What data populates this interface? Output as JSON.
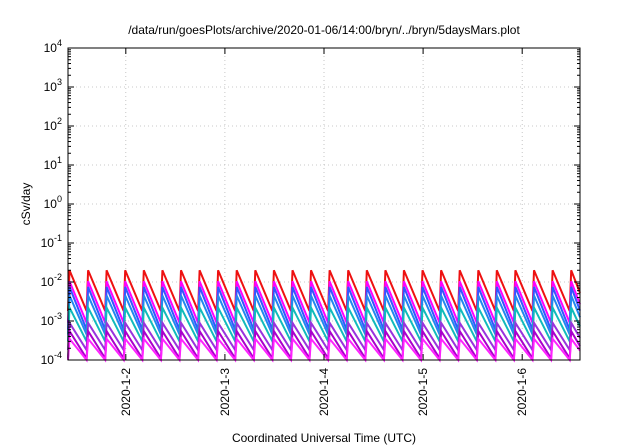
{
  "chart_data": {
    "type": "line",
    "title": "/data/run/goesPlots/archive/2020-01-06/14:00/bryn/../bryn/5daysMars.plot",
    "xlabel": "Coordinated Universal Time (UTC)",
    "ylabel": "cSv/day",
    "yscale": "log",
    "ylim": [
      0.0001,
      10000
    ],
    "xlim": [
      "2020-01-01T10:00",
      "2020-01-06T14:00"
    ],
    "y_ticks": [
      {
        "base": "10",
        "exp": "-4",
        "value": 0.0001
      },
      {
        "base": "10",
        "exp": "-3",
        "value": 0.001
      },
      {
        "base": "10",
        "exp": "-2",
        "value": 0.01
      },
      {
        "base": "10",
        "exp": "-1",
        "value": 0.1
      },
      {
        "base": "10",
        "exp": "0",
        "value": 1
      },
      {
        "base": "10",
        "exp": "1",
        "value": 10
      },
      {
        "base": "10",
        "exp": "2",
        "value": 100
      },
      {
        "base": "10",
        "exp": "3",
        "value": 1000
      },
      {
        "base": "10",
        "exp": "4",
        "value": 10000
      }
    ],
    "x_ticks": [
      {
        "label": "2020-1-2",
        "x": "2020-01-02T00:00"
      },
      {
        "label": "2020-1-3",
        "x": "2020-01-03T00:00"
      },
      {
        "label": "2020-1-4",
        "x": "2020-01-04T00:00"
      },
      {
        "label": "2020-1-5",
        "x": "2020-01-05T00:00"
      },
      {
        "label": "2020-1-6",
        "x": "2020-01-06T00:00"
      }
    ],
    "grid": true,
    "legend": "none",
    "pattern": {
      "description": "sawtooth: sharp rise once per Mars rotation, then decay",
      "rises_at": "2020-01-01T10:00",
      "period_hours": 4.5
    },
    "series": [
      {
        "color": "#ee1111",
        "peak": 0.02,
        "trough": 0.0018
      },
      {
        "color": "#ff00ff",
        "peak": 0.0105,
        "trough": 0.0009
      },
      {
        "color": "#3355ff",
        "peak": 0.0075,
        "trough": 0.0006
      },
      {
        "color": "#2288ee",
        "peak": 0.0045,
        "trough": 0.00045
      },
      {
        "color": "#11bbbb",
        "peak": 0.0022,
        "trough": 0.0003
      },
      {
        "color": "#9933dd",
        "peak": 0.0009,
        "trough": 0.00018
      },
      {
        "color": "#aa00cc",
        "peak": 0.00055,
        "trough": 0.00011
      },
      {
        "color": "#ff22ff",
        "peak": 0.00035,
        "trough": 0.0001
      }
    ]
  }
}
